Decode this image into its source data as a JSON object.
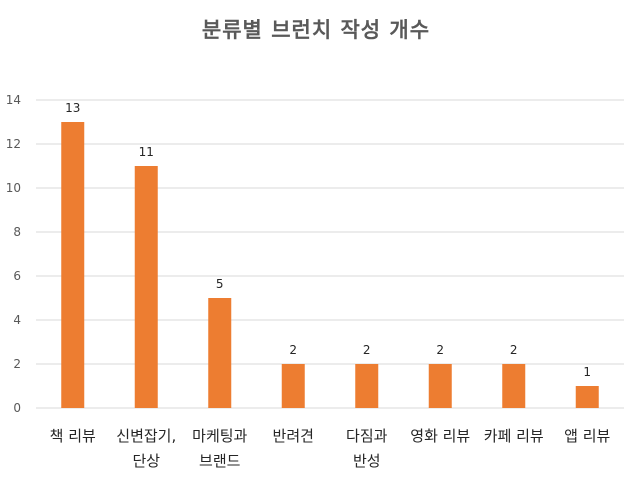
{
  "chart_data": {
    "type": "bar",
    "title": "분류별 브런치 작성 개수",
    "xlabel": "",
    "ylabel": "",
    "categories": [
      [
        "책 리뷰"
      ],
      [
        "신변잡기,",
        "단상"
      ],
      [
        "마케팅과",
        "브랜드"
      ],
      [
        "반려견"
      ],
      [
        "다짐과",
        "반성"
      ],
      [
        "영화 리뷰"
      ],
      [
        "카페 리뷰"
      ],
      [
        "앱 리뷰"
      ]
    ],
    "values": [
      13,
      11,
      5,
      2,
      2,
      2,
      2,
      1
    ],
    "ylim": [
      0,
      14
    ],
    "yticks": [
      0,
      2,
      4,
      6,
      8,
      10,
      12,
      14
    ],
    "grid": true,
    "legend": "none",
    "data_labels": true,
    "bar_color": "#ed7d31",
    "grid_color": "#d9d9d9"
  }
}
